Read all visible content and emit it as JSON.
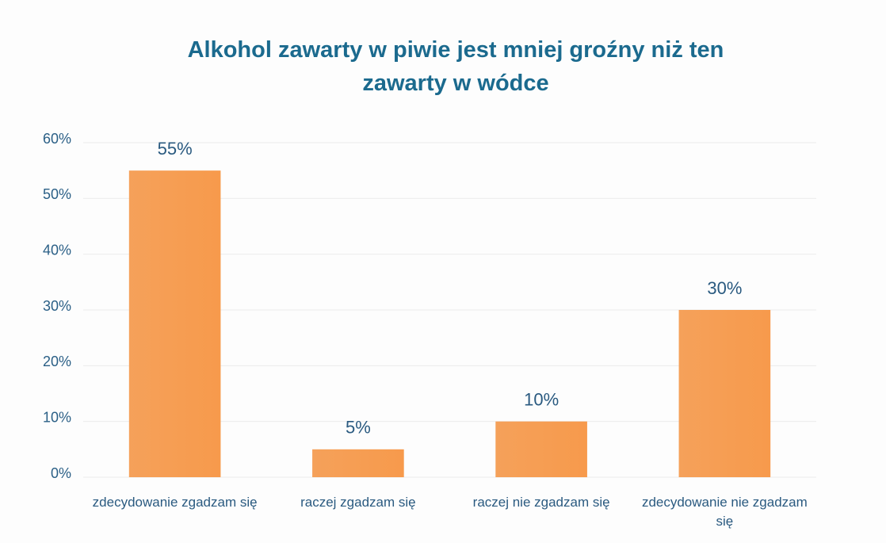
{
  "chart_data": {
    "type": "bar",
    "title": "Alkohol zawarty w piwie jest mniej groźny niż ten zawarty w wódce",
    "categories": [
      "zdecydowanie zgadzam się",
      "raczej zgadzam się",
      "raczej nie zgadzam się",
      "zdecydowanie nie zgadzam się"
    ],
    "values": [
      55,
      5,
      10,
      30
    ],
    "value_labels": [
      "55%",
      "5%",
      "10%",
      "30%"
    ],
    "color": "#f5a15a",
    "ylim": [
      0,
      60
    ],
    "yticks": [
      {
        "value": 0,
        "label": "0%"
      },
      {
        "value": 10,
        "label": "10%"
      },
      {
        "value": 20,
        "label": "20%"
      },
      {
        "value": 30,
        "label": "30%"
      },
      {
        "value": 40,
        "label": "40%"
      },
      {
        "value": 50,
        "label": "50%"
      },
      {
        "value": 60,
        "label": "60%"
      }
    ],
    "grid": true
  }
}
